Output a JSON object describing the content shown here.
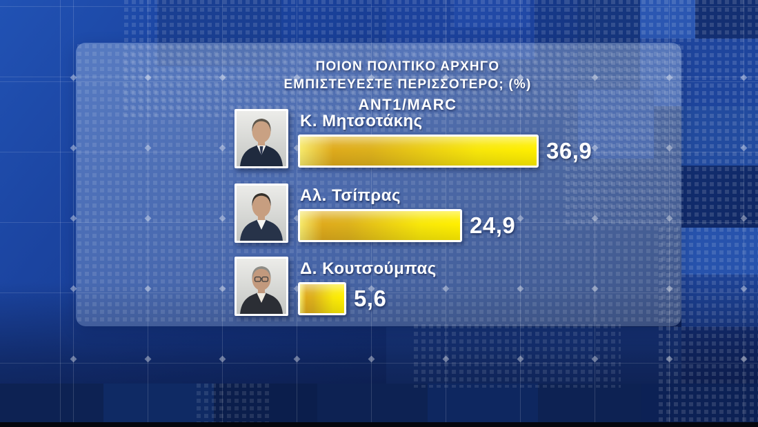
{
  "chart_data": {
    "type": "bar",
    "orientation": "horizontal",
    "title": "ΠΟΙΟΝ ΠΟΛΙΤΙΚΟ ΑΡΧΗΓΟ ΕΜΠΙΣΤΕΥΕΣΤΕ ΠΕΡΙΣΣΟΤΕΡΟ; (%)",
    "title_line1": "ΠΟΙΟΝ ΠΟΛΙΤΙΚΟ ΑΡΧΗΓΟ",
    "title_line2": "ΕΜΠΙΣΤΕΥΕΣΤΕ ΠΕΡΙΣΣΟΤΕΡΟ; (%)",
    "source_label": "ANT1/MARC",
    "unit": "%",
    "decimal_separator": ",",
    "xlim": [
      0,
      40
    ],
    "grid": false,
    "legend": null,
    "categories": [
      "Κ. Μητσοτάκης",
      "Αλ. Τσίπρας",
      "Δ. Κουτσούμπας"
    ],
    "values": [
      36.9,
      24.9,
      5.6
    ],
    "rows": [
      {
        "name": "Κ. Μητσοτάκης",
        "value": 36.9,
        "value_label": "36,9",
        "photo": "portrait-photo-k-mitsotakis",
        "avatar": {
          "hair": "#5d564b",
          "skin": "#c9a183",
          "suit": "#1f2a3e",
          "shirt": "#f4f4f1",
          "tie": "#2a3550",
          "glasses": false
        }
      },
      {
        "name": "Αλ. Τσίπρας",
        "value": 24.9,
        "value_label": "24,9",
        "photo": "portrait-photo-al-tsipras",
        "avatar": {
          "hair": "#35302b",
          "skin": "#c79e80",
          "suit": "#273349",
          "shirt": "#f6f6f3",
          "tie": null,
          "glasses": false
        }
      },
      {
        "name": "Δ. Κουτσούμπας",
        "value": 5.6,
        "value_label": "5,6",
        "photo": "portrait-photo-d-koutsoumpas",
        "avatar": {
          "hair": "#8d8c86",
          "skin": "#c2997d",
          "suit": "#2b2e35",
          "shirt": "#efeae0",
          "tie": null,
          "glasses": true
        }
      }
    ],
    "bar_style": {
      "fill_left": "#f6e96b",
      "fill_gold": "#ddab1c",
      "fill_right": "#ffef00",
      "border": "#ffffff"
    }
  },
  "colors": {
    "background_blue": "#173a8d",
    "background_dark_navy": "#0d2253",
    "panel_overlay": "rgba(195,213,239,0.30)",
    "text": "#ffffff"
  }
}
